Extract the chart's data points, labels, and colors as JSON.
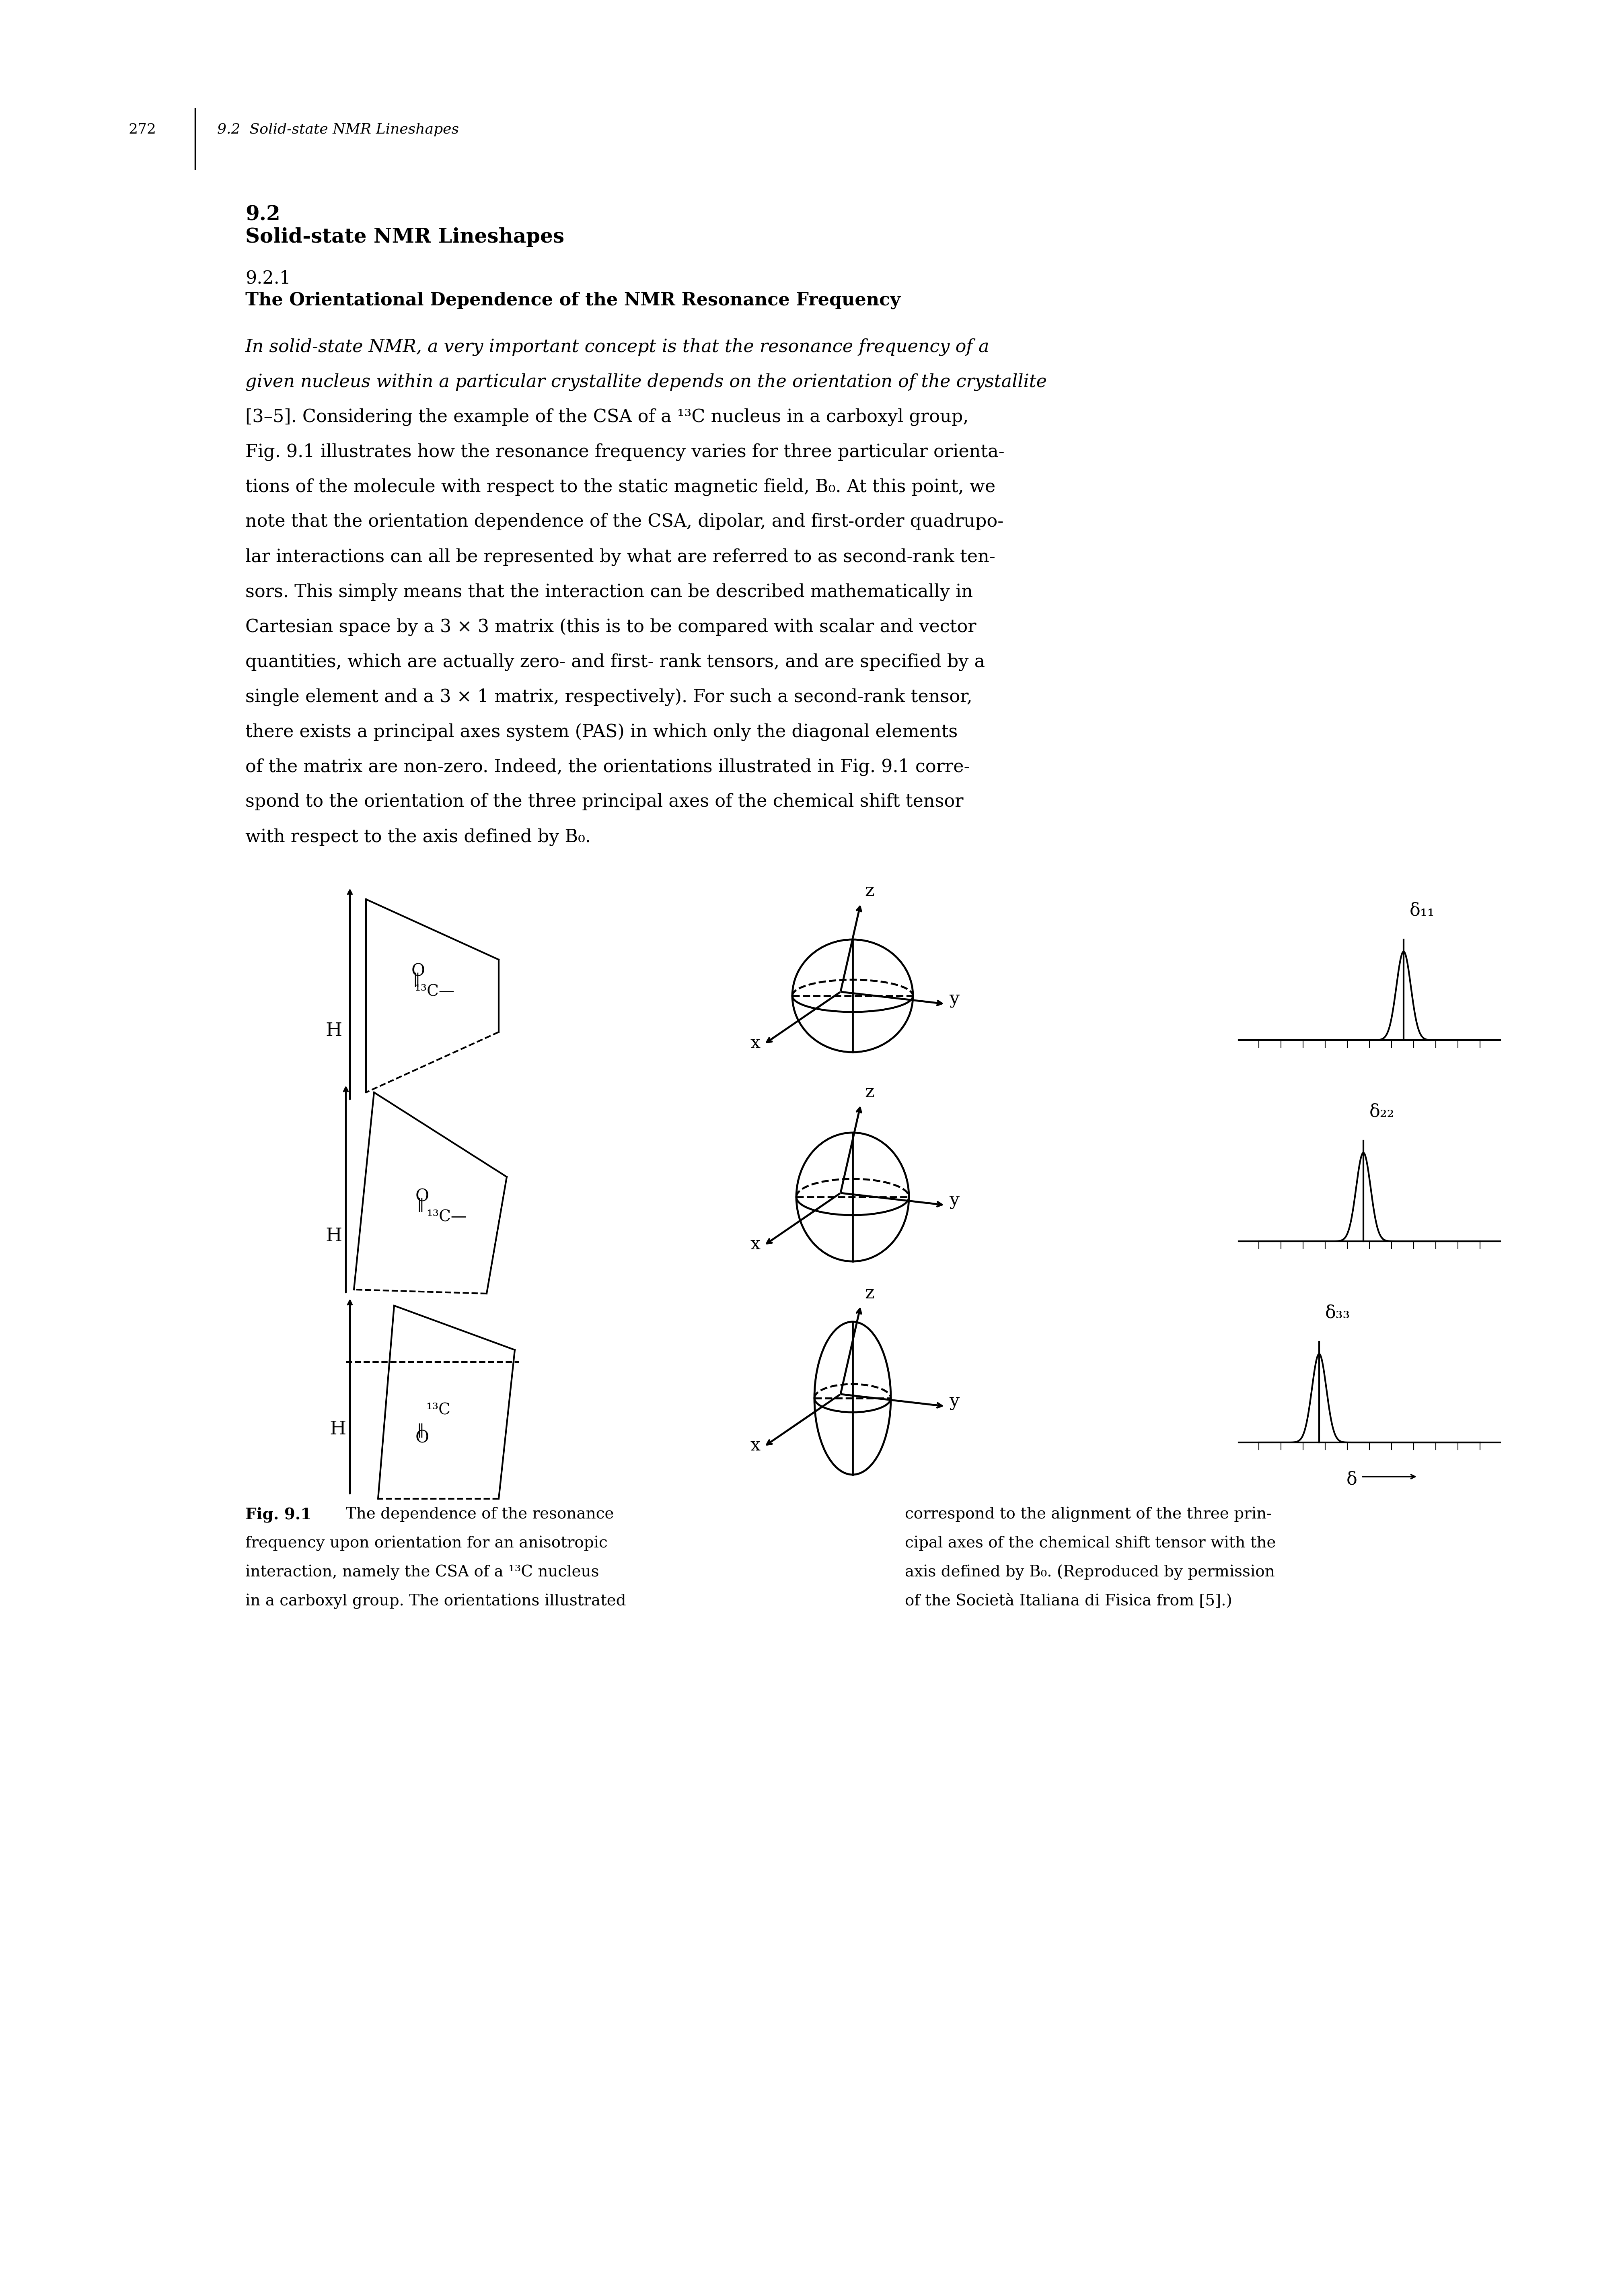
{
  "page_number": "272",
  "header_italic": "9.2  Solid-state NMR Lineshapes",
  "section_number": "9.2",
  "section_title": "Solid-state NMR Lineshapes",
  "subsection_number": "9.2.1",
  "subsection_title": "The Orientational Dependence of the NMR Resonance Frequency",
  "body_text_lines": [
    "In solid-state NMR, a very important concept is that the resonance frequency of a",
    "given nucleus within a particular crystallite depends on the orientation of the crystallite",
    "[3–5]. Considering the example of the CSA of a ¹³C nucleus in a carboxyl group,",
    "Fig. 9.1 illustrates how the resonance frequency varies for three particular orienta-",
    "tions of the molecule with respect to the static magnetic field, B₀. At this point, we",
    "note that the orientation dependence of the CSA, dipolar, and first-order quadrupo-",
    "lar interactions can all be represented by what are referred to as second-rank ten-",
    "sors. This simply means that the interaction can be described mathematically in",
    "Cartesian space by a 3 × 3 matrix (this is to be compared with scalar and vector",
    "quantities, which are actually zero- and first- rank tensors, and are specified by a",
    "single element and a 3 × 1 matrix, respectively). For such a second-rank tensor,",
    "there exists a principal axes system (PAS) in which only the diagonal elements",
    "of the matrix are non-zero. Indeed, the orientations illustrated in Fig. 9.1 corre-",
    "spond to the orientation of the three principal axes of the chemical shift tensor",
    "with respect to the axis defined by B₀."
  ],
  "italic_lines": [
    0,
    1
  ],
  "cap_left_lines": [
    "Fig. 9.1  The dependence of the resonance",
    "frequency upon orientation for an anisotropic",
    "interaction, namely the CSA of a ¹³C nucleus",
    "in a carboxyl group. The orientations illustrated"
  ],
  "cap_right_lines": [
    "correspond to the alignment of the three prin-",
    "cipal axes of the chemical shift tensor with the",
    "axis defined by B₀. (Reproduced by permission",
    "of the Società Italiana di Fisica from [5].)"
  ],
  "background_color": "#ffffff"
}
